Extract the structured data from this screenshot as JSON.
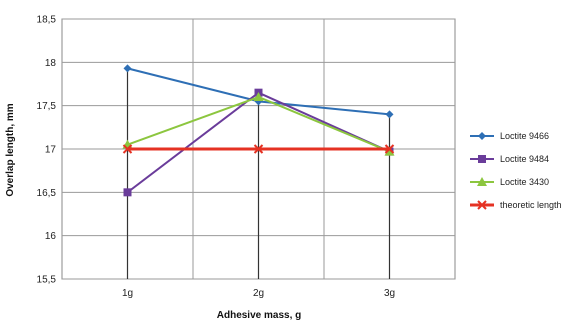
{
  "chart_data": {
    "type": "line",
    "title": "",
    "xlabel": "Adhesive mass, g",
    "ylabel": "Overlap length, mm",
    "categories": [
      "1g",
      "2g",
      "3g"
    ],
    "ylim": [
      15.5,
      18.5
    ],
    "yticks": [
      15.5,
      16,
      16.5,
      17,
      17.5,
      18,
      18.5
    ],
    "ytick_labels": [
      "15,5",
      "16",
      "16,5",
      "17",
      "17,5",
      "18",
      "18,5"
    ],
    "grid": true,
    "legend_position": "right",
    "series": [
      {
        "name": "Loctite 9466",
        "values": [
          17.93,
          17.55,
          17.4
        ],
        "color": "#2e6fb5",
        "marker": "diamond"
      },
      {
        "name": "Loctite 9484",
        "values": [
          16.5,
          17.65,
          16.97
        ],
        "color": "#6a3c9a",
        "marker": "square"
      },
      {
        "name": "Loctite 3430",
        "values": [
          17.05,
          17.6,
          16.97
        ],
        "color": "#8cc63f",
        "marker": "triangle"
      },
      {
        "name": "theoretic length",
        "values": [
          17.0,
          17.0,
          17.0
        ],
        "color": "#e53223",
        "marker": "x"
      }
    ]
  }
}
